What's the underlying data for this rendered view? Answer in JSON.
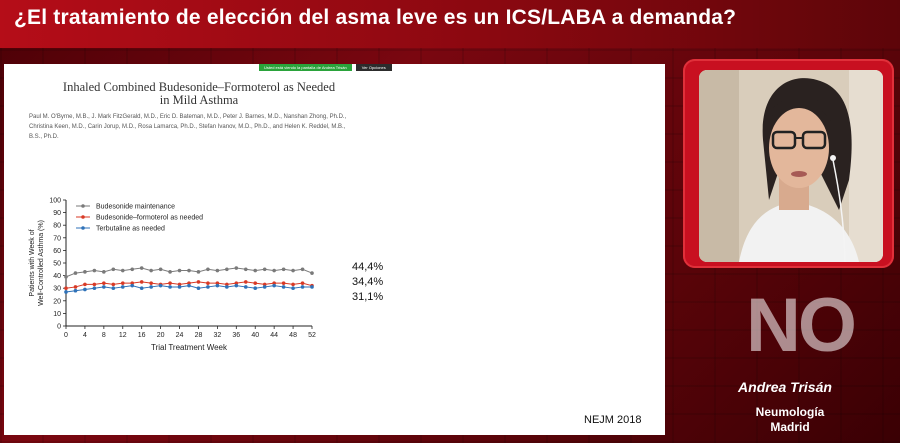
{
  "header": {
    "title": "¿El tratamiento de elección del asma leve es un ICS/LABA a demanda?"
  },
  "slide": {
    "share_text": "Usted está viendo la pantalla de Andrea Trisán",
    "share_button": "Ver Opciones",
    "paper_title_line1": "Inhaled Combined Budesonide–Formoterol as Needed",
    "paper_title_line2": "in Mild Asthma",
    "authors_line1": "Paul M. O'Byrne, M.B., J. Mark FitzGerald, M.D., Eric D. Bateman, M.D., Peter J. Barnes, M.D., Nanshan Zhong, Ph.D.,",
    "authors_line2": "Christina Keen, M.D., Carin Jorup, M.D., Rosa Lamarca, Ph.D., Stefan Ivanov, M.D., Ph.D., and Helen K. Reddel, M.B., B.S., Ph.D.",
    "end_labels": [
      "44,4%",
      "34,4%",
      "31,1%"
    ],
    "source": "NEJM 2018"
  },
  "chart_data": {
    "type": "line",
    "xlabel": "Trial Treatment Week",
    "ylabel": "Patients with Week of Well-Controlled Asthma (%)",
    "xlim": [
      0,
      52
    ],
    "ylim": [
      0,
      100
    ],
    "xticks": [
      0,
      4,
      8,
      12,
      16,
      20,
      24,
      28,
      32,
      36,
      40,
      44,
      48,
      52
    ],
    "yticks": [
      0,
      10,
      20,
      30,
      40,
      50,
      60,
      70,
      80,
      90,
      100
    ],
    "legend_position": "top-left",
    "x": [
      0,
      2,
      4,
      6,
      8,
      10,
      12,
      14,
      16,
      18,
      20,
      22,
      24,
      26,
      28,
      30,
      32,
      34,
      36,
      38,
      40,
      42,
      44,
      46,
      48,
      50,
      52
    ],
    "series": [
      {
        "name": "Budesonide maintenance",
        "color": "#7a7a7a",
        "values": [
          39,
          42,
          43,
          44,
          43,
          45,
          44,
          45,
          46,
          44,
          45,
          43,
          44,
          44,
          43,
          45,
          44,
          45,
          46,
          45,
          44,
          45,
          44,
          45,
          44,
          45,
          42
        ]
      },
      {
        "name": "Budesonide–formoterol as needed",
        "color": "#d83a26",
        "values": [
          30,
          31,
          33,
          33,
          34,
          33,
          34,
          34,
          35,
          34,
          33,
          34,
          33,
          34,
          35,
          34,
          34,
          33,
          34,
          35,
          34,
          33,
          34,
          34,
          33,
          34,
          32
        ]
      },
      {
        "name": "Terbutaline as needed",
        "color": "#2f72b8",
        "values": [
          27,
          28,
          29,
          30,
          31,
          30,
          31,
          32,
          30,
          31,
          32,
          31,
          31,
          32,
          30,
          31,
          32,
          31,
          32,
          31,
          30,
          31,
          32,
          31,
          30,
          31,
          31
        ]
      }
    ]
  },
  "speaker": {
    "answer": "NO",
    "name": "Andrea Trisán",
    "department": "Neumología",
    "city": "Madrid"
  },
  "colors": {
    "accent": "#b50d18",
    "frame": "#c81020"
  }
}
